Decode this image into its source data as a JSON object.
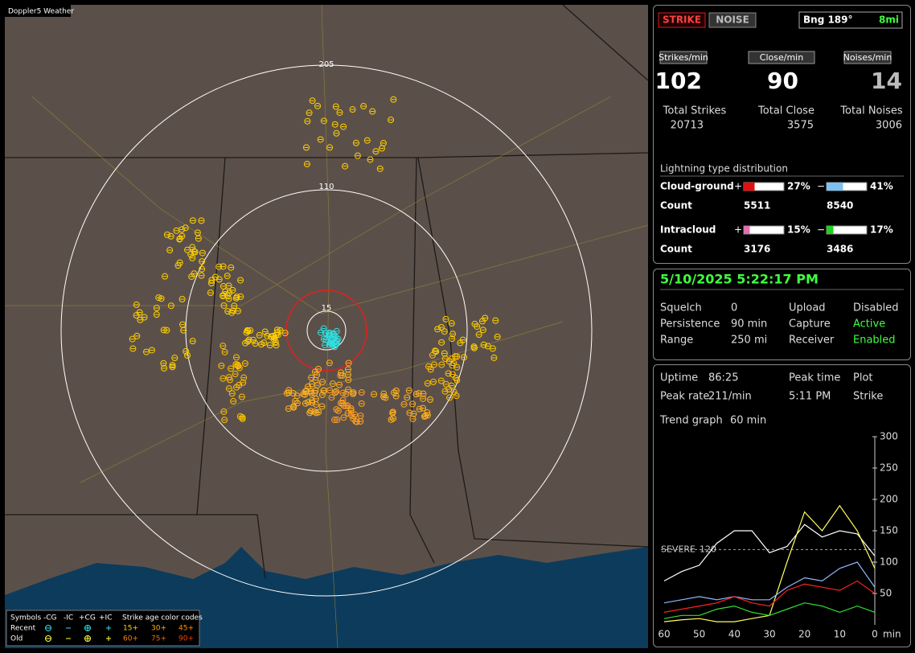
{
  "window_title": "Doppler5 Weather",
  "map": {
    "ring_labels": [
      "205",
      "110",
      "15"
    ],
    "legend": {
      "symbols_label": "Symbols",
      "columns": [
        "-CG",
        "-IC",
        "+CG",
        "+IC"
      ],
      "rows": [
        "Recent",
        "Old"
      ],
      "age_label": "Strike age color codes",
      "age_codes": [
        [
          "15+",
          "30+",
          "45+"
        ],
        [
          "60+",
          "75+",
          "90+"
        ]
      ]
    }
  },
  "counts": {
    "mode_buttons": [
      "STRIKE",
      "NOISE"
    ],
    "bearing": "Bng 189°",
    "distance": "8mi",
    "rate_labels": [
      "Strikes/min",
      "Close/min",
      "Noises/min"
    ],
    "rates": [
      102,
      90,
      14
    ],
    "total_labels": [
      "Total Strikes",
      "Total Close",
      "Total Noises"
    ],
    "totals": [
      20713,
      3575,
      3006
    ]
  },
  "distribution": {
    "title": "Lightning type distribution",
    "count_label": "Count",
    "rows": [
      {
        "label": "Cloud-ground",
        "pos_sign": "+",
        "pos_pct": 27,
        "pos_pct_label": "27%",
        "pos_color": "#e01010",
        "neg_sign": "−",
        "neg_pct": 41,
        "neg_pct_label": "41%",
        "neg_color": "#7ec0ee",
        "pos_count": 5511,
        "neg_count": 8540
      },
      {
        "label": "Intracloud",
        "pos_sign": "+",
        "pos_pct": 15,
        "pos_pct_label": "15%",
        "pos_color": "#e070b0",
        "neg_sign": "−",
        "neg_pct": 17,
        "neg_pct_label": "17%",
        "neg_color": "#20d020",
        "pos_count": 3176,
        "neg_count": 3486
      }
    ]
  },
  "status": {
    "datetime": "5/10/2025 5:22:17 PM",
    "rows": [
      [
        "Squelch",
        "0",
        "Upload",
        "Disabled"
      ],
      [
        "Persistence",
        "90 min",
        "Capture",
        "Active"
      ],
      [
        "Range",
        "250 mi",
        "Receiver",
        "Enabled"
      ]
    ]
  },
  "stats": {
    "rows": [
      [
        "Uptime",
        "86:25",
        "Peak time",
        "Plot"
      ],
      [
        "Peak rate",
        "211/min",
        "5:11 PM",
        "Strike"
      ]
    ],
    "trend_label": "Trend graph",
    "trend_span": "60 min"
  },
  "trend": {
    "ylim": [
      0,
      300
    ],
    "yticks": [
      50,
      100,
      150,
      200,
      250,
      300
    ],
    "xlim": [
      60,
      0
    ],
    "xticks": [
      60,
      50,
      40,
      30,
      20,
      10,
      0
    ],
    "x_unit": "min",
    "severe_label": "SEVERE",
    "severe_value": 120,
    "x": [
      60,
      55,
      50,
      45,
      40,
      35,
      30,
      25,
      20,
      15,
      10,
      5,
      0
    ],
    "series": [
      {
        "color": "#ffffff",
        "values": [
          70,
          85,
          95,
          130,
          150,
          150,
          115,
          125,
          160,
          140,
          150,
          145,
          110
        ]
      },
      {
        "color": "#ffff60",
        "values": [
          5,
          8,
          10,
          5,
          5,
          10,
          15,
          100,
          180,
          150,
          190,
          150,
          90
        ]
      },
      {
        "color": "#8fb8ff",
        "values": [
          35,
          40,
          45,
          40,
          45,
          40,
          40,
          60,
          75,
          70,
          90,
          100,
          60
        ]
      },
      {
        "color": "#ff2020",
        "values": [
          20,
          25,
          30,
          35,
          45,
          35,
          30,
          55,
          65,
          60,
          55,
          70,
          50
        ]
      },
      {
        "color": "#30e030",
        "values": [
          10,
          15,
          15,
          25,
          30,
          20,
          15,
          25,
          35,
          30,
          20,
          30,
          20
        ]
      }
    ]
  }
}
